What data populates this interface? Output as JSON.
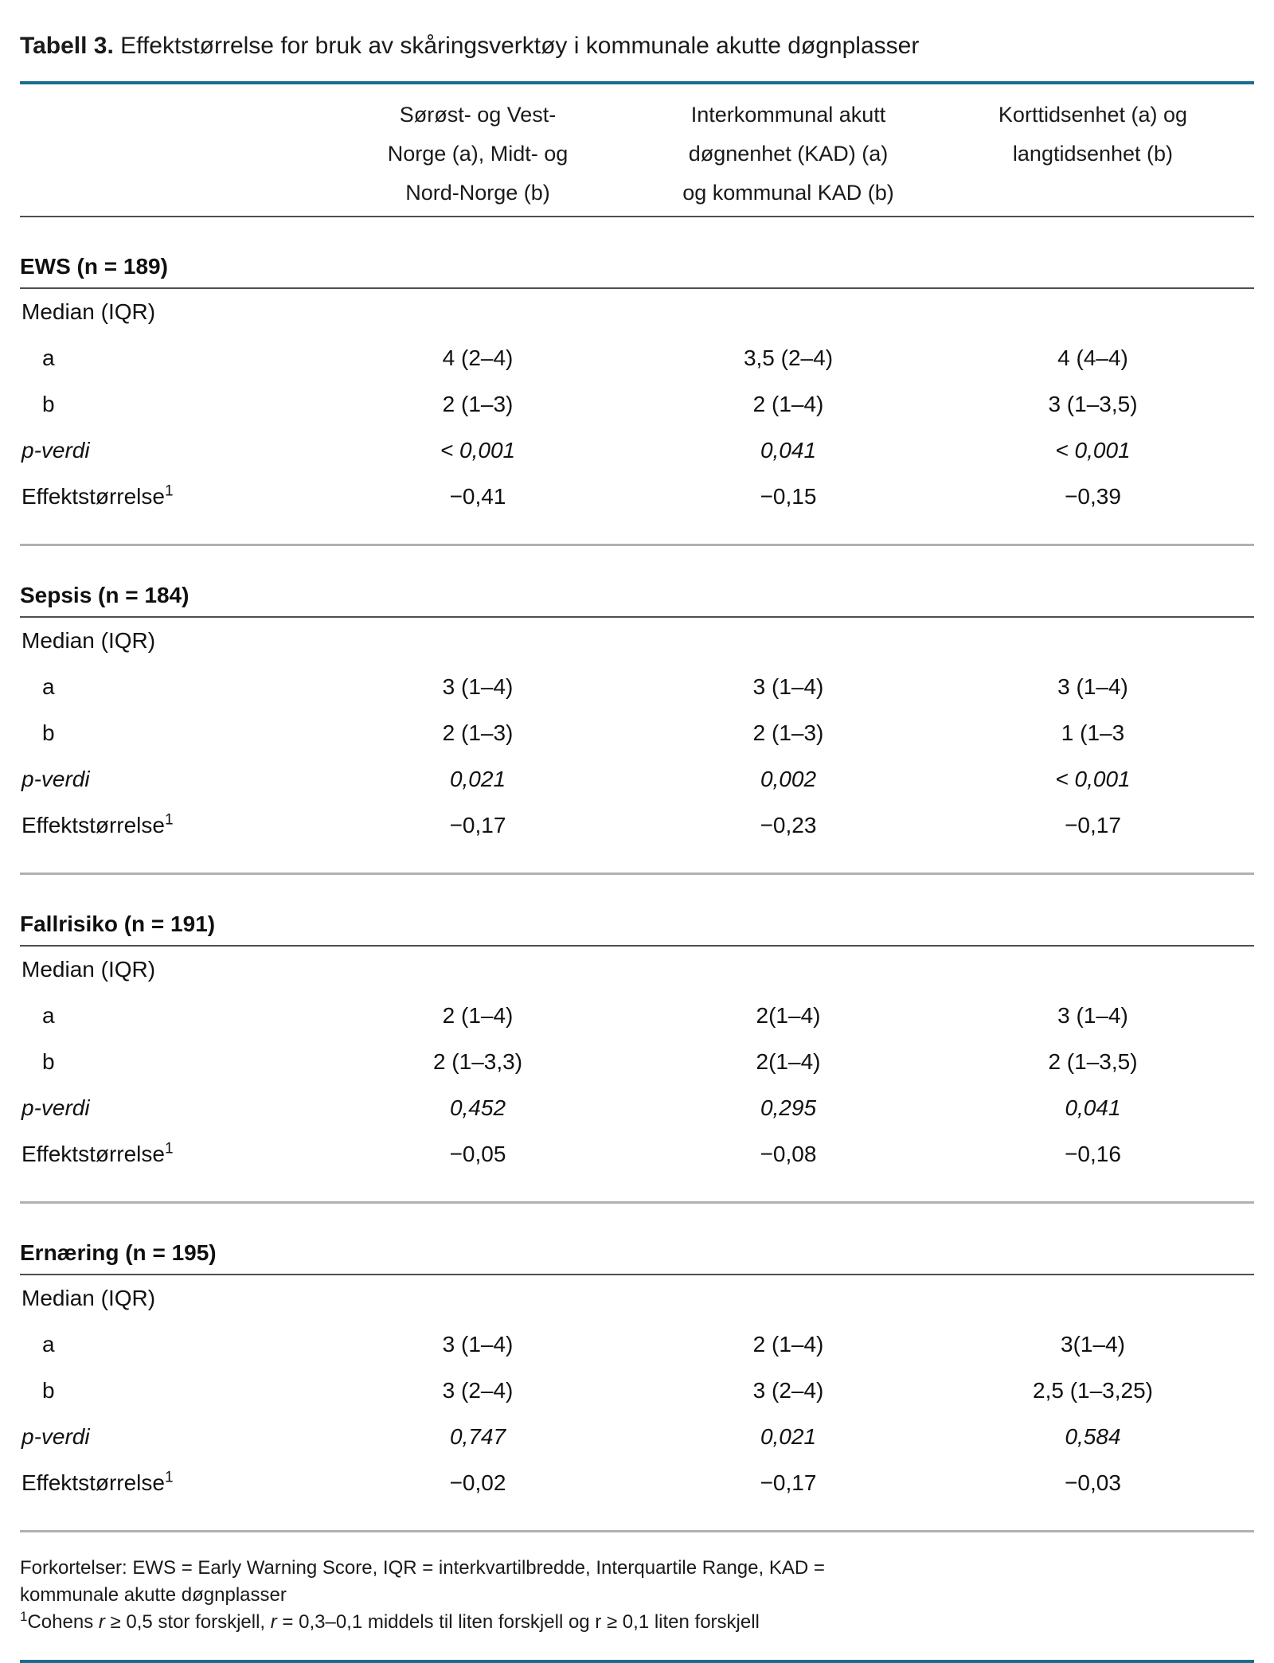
{
  "title": {
    "label": "Tabell 3.",
    "text": " Effektstørrelse for bruk av skåringsverktøy i kommunale akutte døgnplasser"
  },
  "columns": [
    {
      "lines": [
        "Sørøst- og Vest-",
        "Norge (a), Midt- og",
        "Nord-Norge (b)"
      ]
    },
    {
      "lines": [
        "Interkommunal akutt",
        "døgnenhet (KAD) (a)",
        "og kommunal KAD (b)"
      ]
    },
    {
      "lines": [
        "Korttidsenhet (a) og",
        "langtidsenhet (b)",
        ""
      ]
    }
  ],
  "row_labels": {
    "median": "Median (IQR)",
    "a": "a",
    "b": "b",
    "p": "p-verdi",
    "effect": "Effektstørrelse",
    "effect_sup": "1"
  },
  "sections": [
    {
      "name": "EWS (n = 189)",
      "a": [
        "4 (2–4)",
        "3,5 (2–4)",
        "4 (4–4)"
      ],
      "b": [
        "2 (1–3)",
        "2 (1–4)",
        "3 (1–3,5)"
      ],
      "p": [
        "< 0,001",
        "0,041",
        "< 0,001"
      ],
      "effect": [
        "−0,41",
        "−0,15",
        "−0,39"
      ]
    },
    {
      "name": "Sepsis (n = 184)",
      "a": [
        "3 (1–4)",
        "3 (1–4)",
        "3 (1–4)"
      ],
      "b": [
        "2 (1–3)",
        "2 (1–3)",
        "1 (1–3"
      ],
      "p": [
        "0,021",
        "0,002",
        "< 0,001"
      ],
      "effect": [
        "−0,17",
        "−0,23",
        "−0,17"
      ]
    },
    {
      "name": "Fallrisiko (n = 191)",
      "a": [
        "2 (1–4)",
        "2(1–4)",
        "3 (1–4)"
      ],
      "b": [
        "2 (1–3,3)",
        "2(1–4)",
        "2 (1–3,5)"
      ],
      "p": [
        "0,452",
        "0,295",
        "0,041"
      ],
      "effect": [
        "−0,05",
        "−0,08",
        "−0,16"
      ]
    },
    {
      "name": "Ernæring (n = 195)",
      "a": [
        "3 (1–4)",
        "2 (1–4)",
        "3(1–4)"
      ],
      "b": [
        "3 (2–4)",
        "3 (2–4)",
        "2,5 (1–3,25)"
      ],
      "p": [
        "0,747",
        "0,021",
        "0,584"
      ],
      "effect": [
        "−0,02",
        "−0,17",
        "−0,03"
      ]
    }
  ],
  "footnotes": {
    "line1": "Forkortelser: EWS = Early Warning Score, IQR = interkvartilbredde, Interquartile Range, KAD =",
    "line2": "kommunale akutte døgnplasser",
    "sup": "1",
    "cohens": {
      "pre": "Cohens ",
      "r1": "r",
      "seg1": " ≥ 0,5 stor forskjell, ",
      "r2": "r",
      "seg2": " = 0,3–0,1 middels til liten forskjell og r ≥ 0,1 liten forskjell"
    }
  },
  "colors": {
    "accent_rule": "#1b6d8e",
    "section_rule": "#4f4f4f",
    "divider": "#b1b1b1",
    "text": "#111111"
  }
}
